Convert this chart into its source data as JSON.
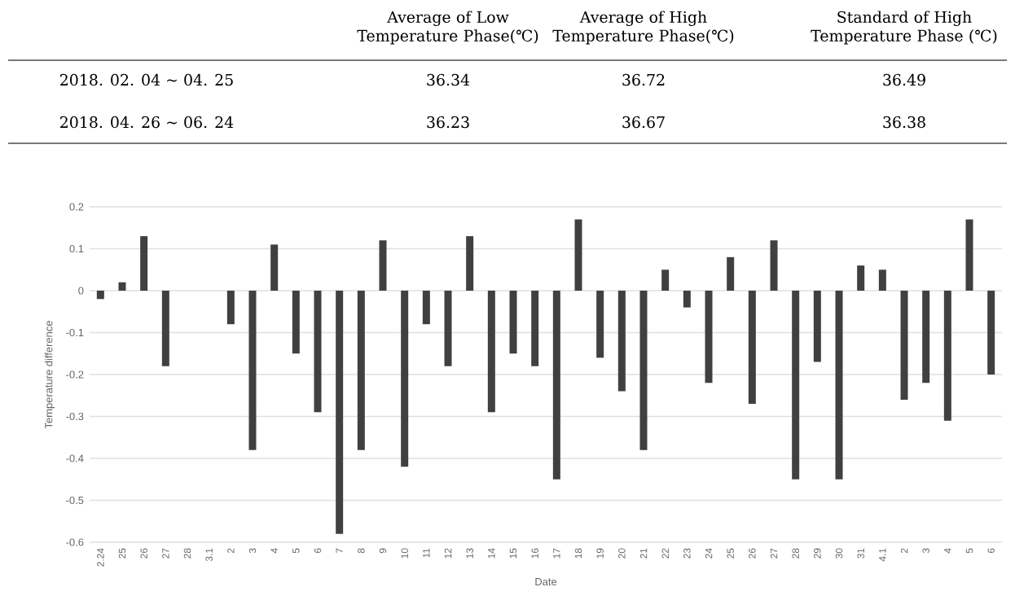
{
  "chart_data": [
    {
      "type": "other",
      "categories": [
        "Average of Low Temperature Phase(℃)",
        "Average of High Temperature Phase(℃)",
        "Standard of High Temperature Phase (℃)"
      ],
      "series": [
        {
          "name": "2018. 02. 04 ~ 04. 25",
          "values": [
            36.34,
            36.72,
            36.49
          ]
        },
        {
          "name": "2018. 04. 26 ~ 06. 24",
          "values": [
            36.23,
            36.67,
            36.38
          ]
        }
      ],
      "data_labels": true
    },
    {
      "type": "bar",
      "xlabel": "Date",
      "ylabel": "Temperature difference",
      "categories": [
        "2.24",
        "25",
        "26",
        "27",
        "28",
        "3.1",
        "2",
        "3",
        "4",
        "5",
        "6",
        "7",
        "8",
        "9",
        "10",
        "11",
        "12",
        "13",
        "14",
        "15",
        "16",
        "17",
        "18",
        "19",
        "20",
        "21",
        "22",
        "23",
        "24",
        "25",
        "26",
        "27",
        "28",
        "29",
        "30",
        "31",
        "4.1",
        "2",
        "3",
        "4",
        "5",
        "6"
      ],
      "values": [
        -0.02,
        0.02,
        0.13,
        -0.18,
        null,
        null,
        -0.08,
        -0.38,
        0.11,
        -0.15,
        -0.29,
        -0.58,
        -0.38,
        0.12,
        -0.42,
        -0.08,
        -0.18,
        0.13,
        -0.29,
        -0.15,
        -0.18,
        -0.45,
        0.17,
        -0.16,
        -0.24,
        -0.38,
        0.05,
        -0.04,
        -0.22,
        0.08,
        -0.27,
        0.12,
        -0.45,
        -0.17,
        -0.45,
        0.06,
        0.05,
        -0.26,
        -0.22,
        -0.31,
        0.17,
        -0.2
      ],
      "color": "#404040",
      "ylim": [
        -0.6,
        0.2
      ],
      "yticks": [
        -0.6,
        -0.5,
        -0.4,
        -0.3,
        -0.2,
        -0.1,
        0,
        0.1,
        0.2
      ],
      "grid": "y"
    }
  ]
}
